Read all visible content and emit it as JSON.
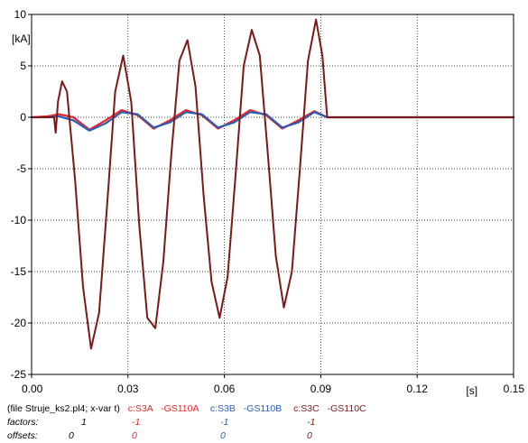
{
  "chart_data": {
    "type": "line",
    "ylabel": "[kA]",
    "xlabel": "[s]",
    "xlim": [
      0,
      0.15
    ],
    "ylim": [
      -25,
      10
    ],
    "x_ticks": [
      0,
      0.03,
      0.06,
      0.09,
      0.12,
      0.15
    ],
    "x_tick_labels": [
      "0.00",
      "0.03",
      "0.06",
      "0.09",
      "0.12",
      "0.15"
    ],
    "y_ticks": [
      -25,
      -20,
      -15,
      -10,
      -5,
      0,
      5,
      10
    ],
    "y_tick_labels": [
      "-25",
      "-20",
      "-15",
      "-10",
      "-5",
      "0",
      "5",
      "10"
    ],
    "grid": true,
    "series": [
      {
        "name": "c:S3A -GS110A",
        "color": "#e8262a",
        "x": [
          0,
          0.005,
          0.0085,
          0.013,
          0.018,
          0.023,
          0.028,
          0.033,
          0.038,
          0.043,
          0.048,
          0.053,
          0.058,
          0.063,
          0.068,
          0.073,
          0.078,
          0.083,
          0.088,
          0.092,
          0.15
        ],
        "y": [
          0,
          0.1,
          0.3,
          0.0,
          -1.2,
          -0.3,
          0.7,
          0.2,
          -1.1,
          -0.3,
          0.7,
          0.2,
          -1.1,
          -0.3,
          0.7,
          0.2,
          -1.1,
          -0.3,
          0.6,
          0,
          0
        ]
      },
      {
        "name": "c:S3B -GS110B",
        "color": "#2a5db8",
        "x": [
          0,
          0.005,
          0.0085,
          0.013,
          0.018,
          0.023,
          0.028,
          0.033,
          0.038,
          0.043,
          0.048,
          0.053,
          0.058,
          0.063,
          0.068,
          0.073,
          0.078,
          0.083,
          0.088,
          0.092,
          0.15
        ],
        "y": [
          0,
          0.0,
          0.1,
          -0.3,
          -1.3,
          -0.6,
          0.5,
          0.3,
          -1.0,
          -0.5,
          0.5,
          0.3,
          -1.0,
          -0.5,
          0.5,
          0.3,
          -1.0,
          -0.5,
          0.5,
          0,
          0
        ]
      },
      {
        "name": "c:S3C -GS110C",
        "color": "#7b1818",
        "x": [
          0,
          0.007,
          0.0075,
          0.0082,
          0.0095,
          0.011,
          0.0135,
          0.016,
          0.0185,
          0.021,
          0.0235,
          0.026,
          0.0285,
          0.031,
          0.0335,
          0.036,
          0.0385,
          0.041,
          0.0435,
          0.046,
          0.0485,
          0.051,
          0.0535,
          0.056,
          0.0585,
          0.061,
          0.0635,
          0.066,
          0.0685,
          0.071,
          0.0735,
          0.076,
          0.0785,
          0.081,
          0.0835,
          0.086,
          0.0885,
          0.0905,
          0.092,
          0.15
        ],
        "y": [
          0,
          0,
          -1.5,
          1.5,
          3.5,
          2.5,
          -6.0,
          -16.5,
          -22.5,
          -19.0,
          -8.5,
          2.5,
          6.0,
          1.5,
          -10.5,
          -19.5,
          -20.5,
          -14.0,
          -3.5,
          5.5,
          7.5,
          3.0,
          -7.5,
          -16.0,
          -19.5,
          -15.5,
          -5.5,
          5.0,
          8.5,
          6.0,
          -3.5,
          -13.5,
          -18.5,
          -15.0,
          -5.0,
          5.5,
          9.5,
          6.0,
          0,
          0
        ]
      }
    ]
  },
  "legend": {
    "file_label": "(file Struje_ks2.pl4; x-var t)",
    "series_a": {
      "part1": "c:S3A",
      "part2": "-GS110A"
    },
    "series_b": {
      "part1": "c:S3B",
      "part2": "-GS110B"
    },
    "series_c": {
      "part1": "c:S3C",
      "part2": "-GS110C"
    },
    "factors_label": "factors:",
    "offsets_label": "offsets:",
    "factor_t": "1",
    "factor_a": "-1",
    "factor_b": "-1",
    "factor_c": "-1",
    "offset_t": "0",
    "offset_a": "0",
    "offset_b": "0",
    "offset_c": "0"
  }
}
